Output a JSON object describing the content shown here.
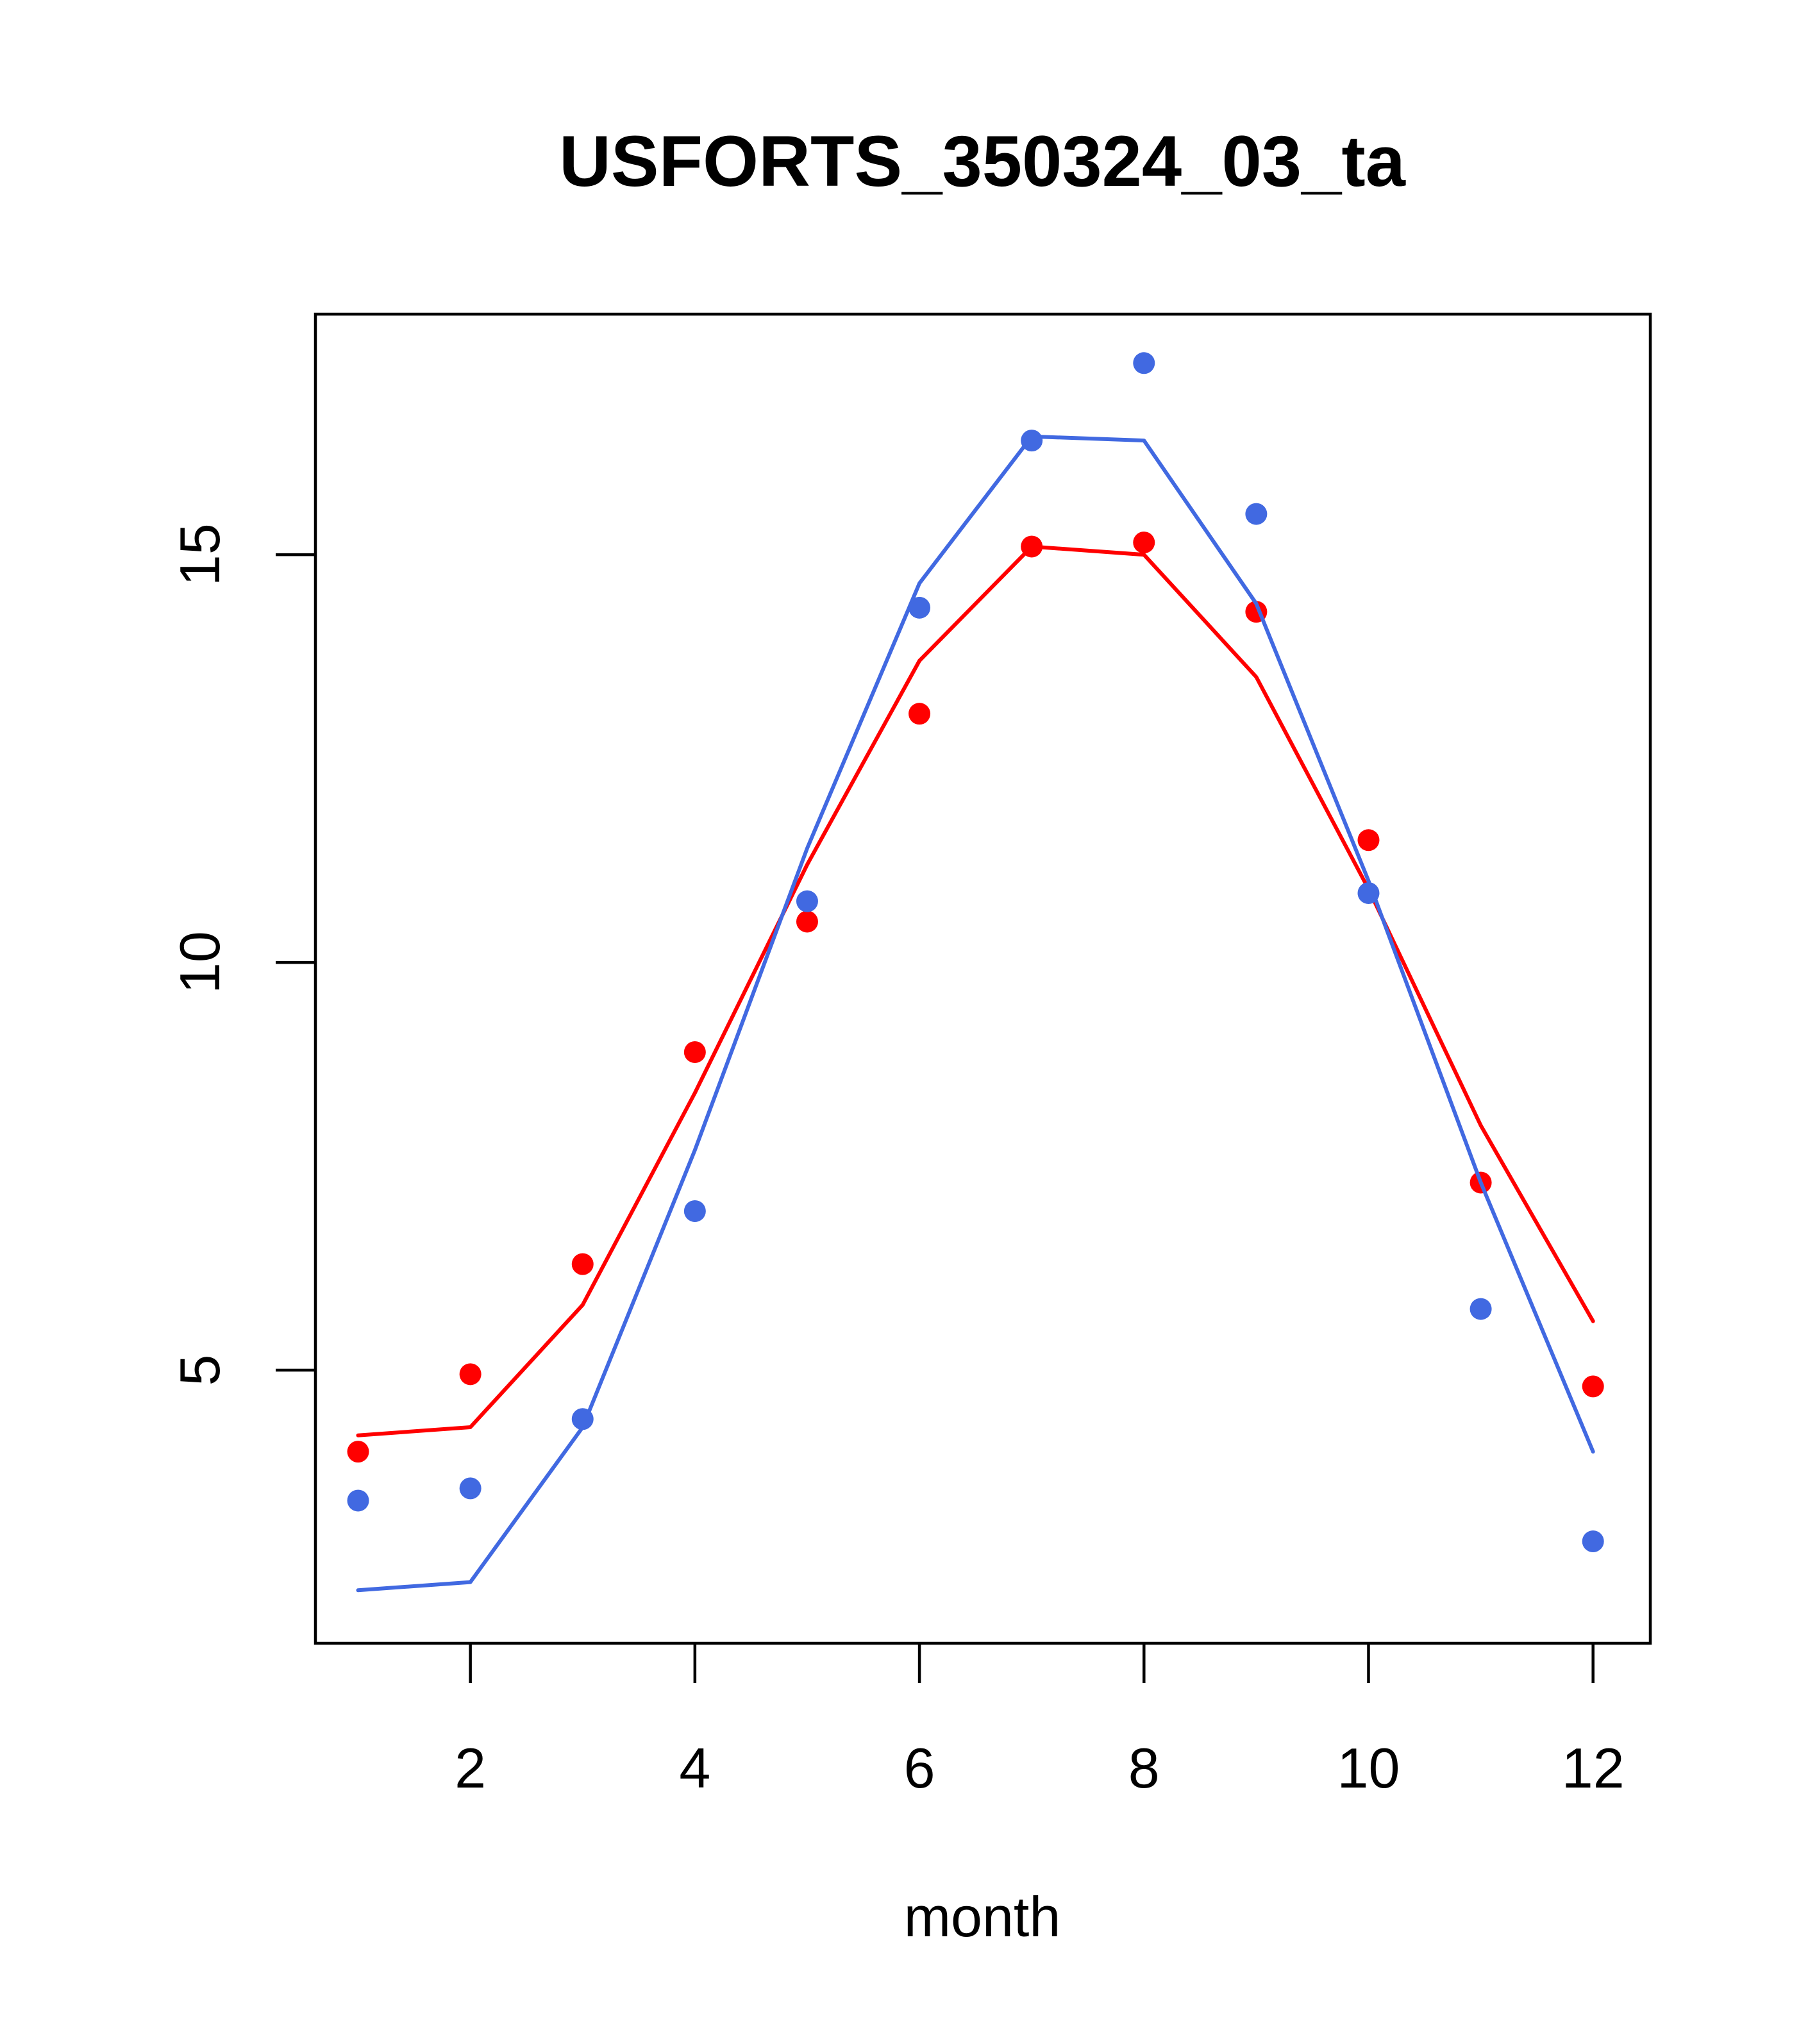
{
  "chart_data": {
    "type": "line",
    "title": "USFORTS_350324_03_ta",
    "xlabel": "month",
    "ylabel": "",
    "xlim": [
      0.62,
      12.51
    ],
    "ylim": [
      1.65,
      17.95
    ],
    "xticks": [
      2,
      4,
      6,
      8,
      10,
      12
    ],
    "yticks": [
      5,
      10,
      15
    ],
    "x": [
      1,
      2,
      3,
      4,
      5,
      6,
      7,
      8,
      9,
      10,
      11,
      12
    ],
    "grid": false,
    "legend": "none",
    "series": [
      {
        "color": "#ff0000",
        "line": [
          4.2,
          4.3,
          5.8,
          8.4,
          11.2,
          13.7,
          15.1,
          15.0,
          13.5,
          10.9,
          8.0,
          5.6
        ],
        "points": [
          4.0,
          4.95,
          6.3,
          8.9,
          10.5,
          13.05,
          15.1,
          15.15,
          14.3,
          11.5,
          7.3,
          4.8
        ]
      },
      {
        "color": "#4169e1",
        "line": [
          2.3,
          2.4,
          4.3,
          7.7,
          11.4,
          14.65,
          16.45,
          16.4,
          14.4,
          11.0,
          7.3,
          4.0
        ],
        "points": [
          3.4,
          3.55,
          4.4,
          6.95,
          10.75,
          14.35,
          16.4,
          17.35,
          15.5,
          10.85,
          5.75,
          2.9
        ]
      }
    ]
  }
}
